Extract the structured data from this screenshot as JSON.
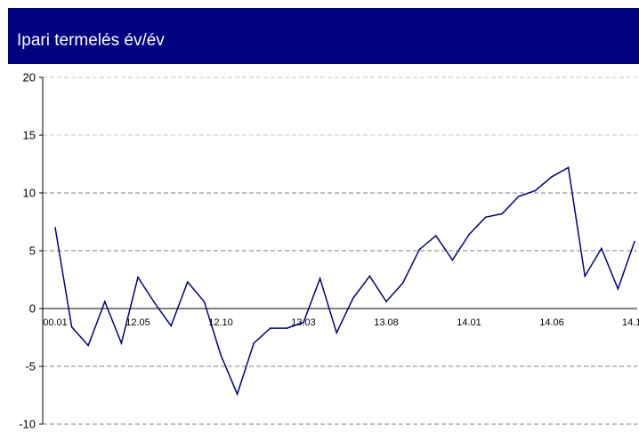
{
  "header": {
    "title": "Ipari termelés év/év"
  },
  "colors": {
    "header_bg": "#000080",
    "line": "#000080",
    "grid": "#808080"
  },
  "chart_data": {
    "type": "line",
    "title": "Ipari termelés év/év",
    "xlabel": "",
    "ylabel": "",
    "ylim": [
      -10,
      20
    ],
    "yticks": [
      20,
      15,
      10,
      5,
      0,
      -5,
      -10
    ],
    "grid": true,
    "x_tick_labels": [
      {
        "label": "00.01",
        "index": 0
      },
      {
        "label": "12.05",
        "index": 5
      },
      {
        "label": "12.10",
        "index": 10
      },
      {
        "label": "13.03",
        "index": 15
      },
      {
        "label": "13.08",
        "index": 20
      },
      {
        "label": "14.01",
        "index": 25
      },
      {
        "label": "14.06",
        "index": 30
      },
      {
        "label": "14.1",
        "index": 35
      }
    ],
    "series": [
      {
        "values": [
          7.0,
          -1.6,
          -3.2,
          0.6,
          -3.0,
          2.7,
          0.5,
          -1.5,
          2.3,
          0.6,
          -4.0,
          -7.4,
          -3.0,
          -1.7,
          -1.7,
          -1.2,
          2.6,
          -2.1,
          0.9,
          2.8,
          0.6,
          2.2,
          5.1,
          6.3,
          4.2,
          6.4,
          7.9,
          8.2,
          9.7,
          10.2,
          11.4,
          12.2,
          2.8,
          5.2,
          1.7,
          5.8
        ]
      }
    ]
  }
}
